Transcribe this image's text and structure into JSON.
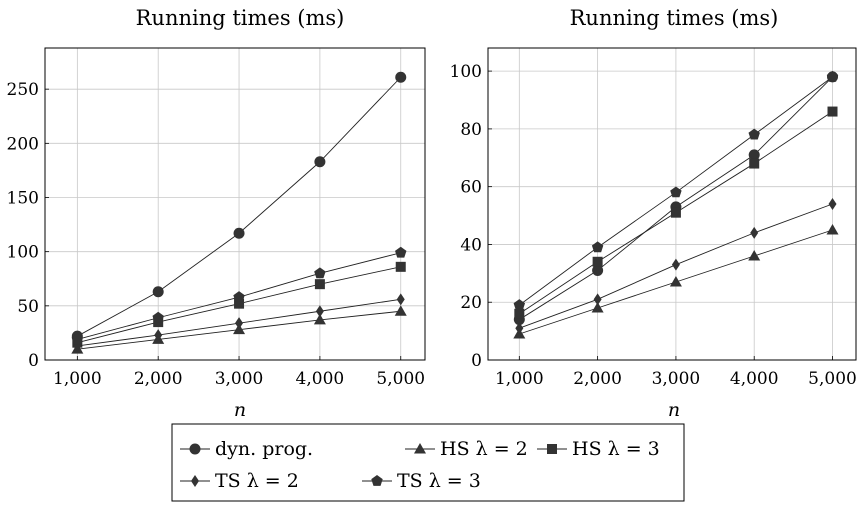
{
  "chart_data": [
    {
      "type": "line",
      "title": "Running times (ms)",
      "xlabel": "n",
      "ylabel": "",
      "x": [
        1000,
        2000,
        3000,
        4000,
        5000
      ],
      "x_tick_labels": [
        "1,000",
        "2,000",
        "3,000",
        "4,000",
        "5,000"
      ],
      "xlim": [
        600,
        5300
      ],
      "ylim": [
        0,
        288
      ],
      "y_ticks": [
        0,
        50,
        100,
        150,
        200,
        250
      ],
      "y_tick_labels": [
        "0",
        "50",
        "100",
        "150",
        "200",
        "250"
      ],
      "grid": true,
      "series": [
        {
          "name": "dyn. prog.",
          "marker": "circle",
          "values": [
            22,
            63,
            117,
            183,
            261
          ]
        },
        {
          "name": "HS λ = 2",
          "marker": "triangle",
          "values": [
            10,
            19,
            28,
            37,
            45
          ]
        },
        {
          "name": "HS λ = 3",
          "marker": "square",
          "values": [
            16,
            35,
            52,
            70,
            86
          ]
        },
        {
          "name": "TS λ = 2",
          "marker": "diamond",
          "values": [
            13,
            23,
            34,
            45,
            56
          ]
        },
        {
          "name": "TS λ = 3",
          "marker": "pentagon",
          "values": [
            19,
            39,
            58,
            80,
            99
          ]
        }
      ]
    },
    {
      "type": "line",
      "title": "Running times (ms)",
      "xlabel": "n",
      "ylabel": "",
      "x": [
        1000,
        2000,
        3000,
        4000,
        5000
      ],
      "x_tick_labels": [
        "1,000",
        "2,000",
        "3,000",
        "4,000",
        "5,000"
      ],
      "xlim": [
        600,
        5300
      ],
      "ylim": [
        0,
        108
      ],
      "y_ticks": [
        0,
        20,
        40,
        60,
        80,
        100
      ],
      "y_tick_labels": [
        "0",
        "20",
        "40",
        "60",
        "80",
        "100"
      ],
      "grid": true,
      "series": [
        {
          "name": "dyn. prog.",
          "marker": "circle",
          "values": [
            14,
            31,
            53,
            71,
            98
          ]
        },
        {
          "name": "HS λ = 2",
          "marker": "triangle",
          "values": [
            9,
            18,
            27,
            36,
            45
          ]
        },
        {
          "name": "HS λ = 3",
          "marker": "square",
          "values": [
            16,
            34,
            51,
            68,
            86
          ]
        },
        {
          "name": "TS λ = 2",
          "marker": "diamond",
          "values": [
            11,
            21,
            33,
            44,
            54
          ]
        },
        {
          "name": "TS λ = 3",
          "marker": "pentagon",
          "values": [
            19,
            39,
            58,
            78,
            98
          ]
        }
      ]
    }
  ],
  "legend": {
    "placement": "bottom-center",
    "rows": [
      [
        "dyn. prog.",
        "HS λ = 2",
        "HS λ = 3"
      ],
      [
        "TS λ = 2",
        "TS λ = 3"
      ]
    ]
  }
}
